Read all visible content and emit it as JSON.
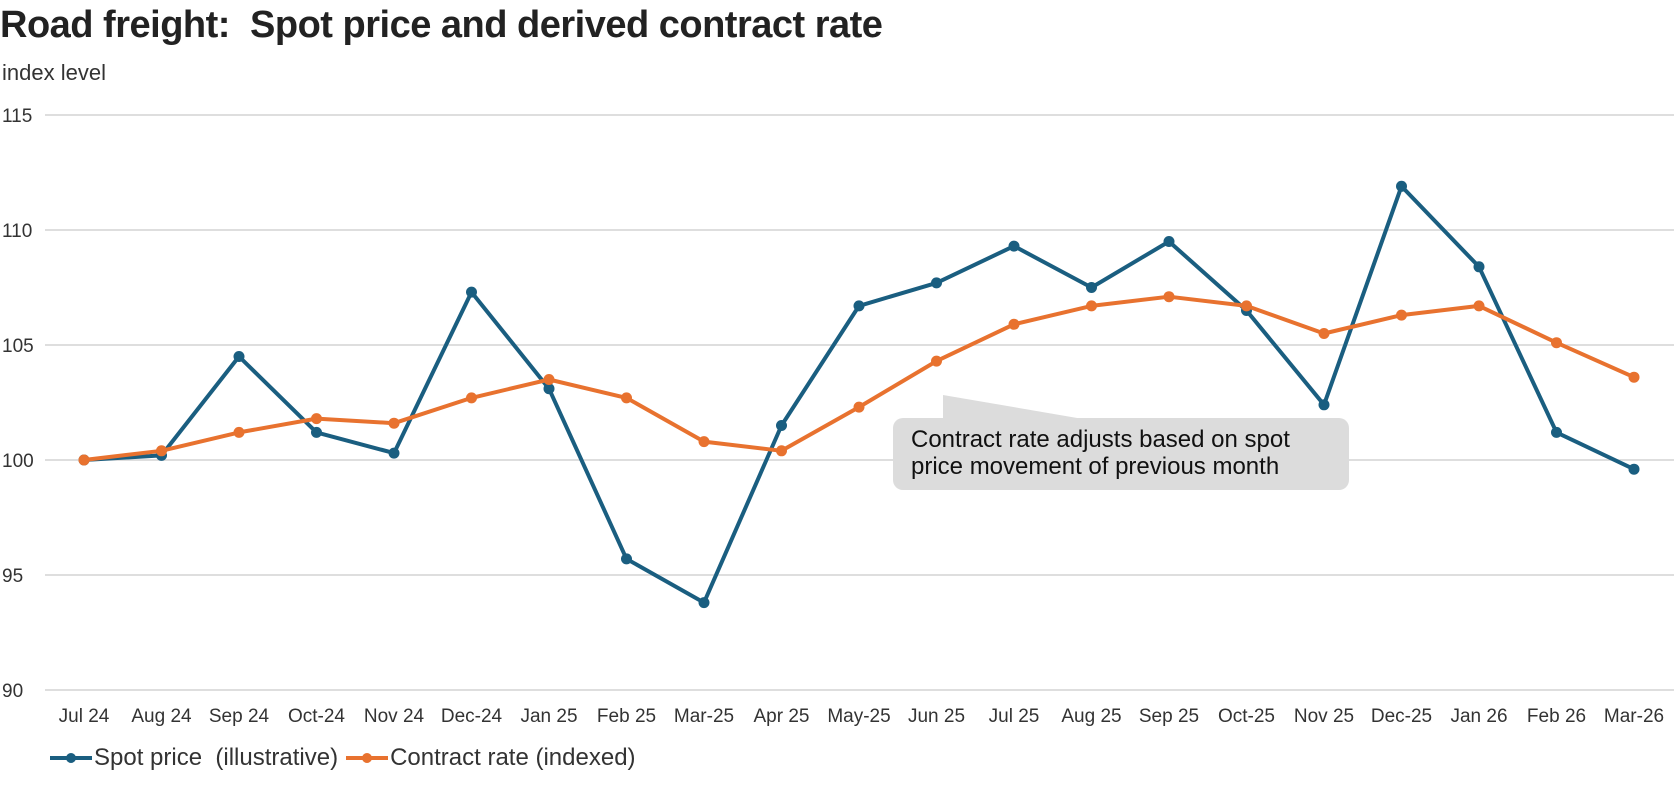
{
  "chart_data": {
    "type": "line",
    "title": "Road freight:  Spot price and derived contract rate",
    "subtitle": "index level",
    "ylim": [
      90,
      115
    ],
    "yticks": [
      "115",
      "110",
      "105",
      "100",
      "95",
      "90"
    ],
    "ytick_values": [
      115,
      110,
      105,
      100,
      95,
      90
    ],
    "grid": true,
    "categories": [
      "Jul 24",
      "Aug 24",
      "Sep 24",
      "Oct-24",
      "Nov 24",
      "Dec-24",
      "Jan 25",
      "Feb 25",
      "Mar-25",
      "Apr 25",
      "May-25",
      "Jun 25",
      "Jul 25",
      "Aug 25",
      "Sep 25",
      "Oct-25",
      "Nov 25",
      "Dec-25",
      "Jan 26",
      "Feb 26",
      "Mar-26"
    ],
    "series": [
      {
        "name": "Spot price  (illustrative)",
        "color": "#1a5e80",
        "values": [
          100.0,
          100.2,
          104.5,
          101.2,
          100.3,
          107.3,
          103.1,
          95.7,
          93.8,
          101.5,
          106.7,
          107.7,
          109.3,
          107.5,
          109.5,
          106.5,
          102.4,
          111.9,
          108.4,
          101.2,
          99.6
        ]
      },
      {
        "name": "Contract rate (indexed)",
        "color": "#e8722f",
        "values": [
          100.0,
          100.4,
          101.2,
          101.8,
          101.6,
          102.7,
          103.5,
          102.7,
          100.8,
          100.4,
          102.3,
          104.3,
          105.9,
          106.7,
          107.1,
          106.7,
          105.5,
          106.3,
          106.7,
          105.1,
          103.6
        ]
      }
    ],
    "legend": "bottom-left",
    "annotation": {
      "line1": "Contract rate adjusts based on spot",
      "line2": "price movement of previous month"
    }
  }
}
